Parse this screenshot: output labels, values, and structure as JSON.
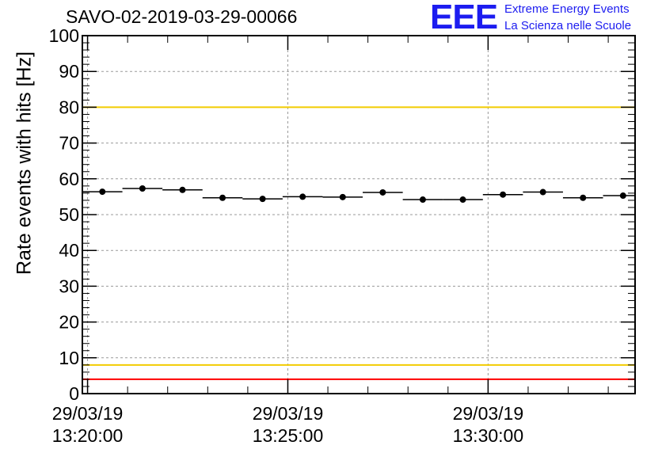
{
  "title": "SAVO-02-2019-03-29-00066",
  "logo": {
    "mark": "EEE",
    "line1": "Extreme Energy Events",
    "line2": "La Scienza nelle Scuole",
    "color": "#1c1cf0"
  },
  "chart_data": {
    "type": "scatter",
    "title": "SAVO-02-2019-03-29-00066",
    "ylabel": "Rate events with hits [Hz]",
    "xlabel": "",
    "ylim": [
      0,
      100
    ],
    "yticks": [
      0,
      10,
      20,
      30,
      40,
      50,
      60,
      70,
      80,
      90,
      100
    ],
    "xlim_minutes": [
      13.2,
      27.0
    ],
    "xticks": [
      {
        "minute": 13.33,
        "date": "29/03/19",
        "time": "13:20:00"
      },
      {
        "minute": 18.33,
        "date": "29/03/19",
        "time": "13:25:00"
      },
      {
        "minute": 23.33,
        "date": "29/03/19",
        "time": "13:30:00"
      }
    ],
    "grid": true,
    "points": [
      {
        "x": 13.7,
        "y": 56.4,
        "x0": 13.2,
        "x1": 14.2,
        "err": 0.6
      },
      {
        "x": 14.7,
        "y": 57.3,
        "x0": 14.2,
        "x1": 15.2,
        "err": 0.6
      },
      {
        "x": 15.7,
        "y": 56.9,
        "x0": 15.2,
        "x1": 16.2,
        "err": 0.6
      },
      {
        "x": 16.7,
        "y": 54.7,
        "x0": 16.2,
        "x1": 17.2,
        "err": 0.6
      },
      {
        "x": 17.7,
        "y": 54.4,
        "x0": 17.2,
        "x1": 18.2,
        "err": 0.6
      },
      {
        "x": 18.7,
        "y": 55.0,
        "x0": 18.2,
        "x1": 19.2,
        "err": 0.6
      },
      {
        "x": 19.7,
        "y": 54.9,
        "x0": 19.2,
        "x1": 20.2,
        "err": 0.6
      },
      {
        "x": 20.7,
        "y": 56.2,
        "x0": 20.2,
        "x1": 21.2,
        "err": 0.6
      },
      {
        "x": 21.7,
        "y": 54.2,
        "x0": 21.2,
        "x1": 22.2,
        "err": 0.6
      },
      {
        "x": 22.7,
        "y": 54.2,
        "x0": 22.2,
        "x1": 23.2,
        "err": 0.6
      },
      {
        "x": 23.7,
        "y": 55.6,
        "x0": 23.2,
        "x1": 24.2,
        "err": 0.6
      },
      {
        "x": 24.7,
        "y": 56.3,
        "x0": 24.2,
        "x1": 25.2,
        "err": 0.6
      },
      {
        "x": 25.7,
        "y": 54.7,
        "x0": 25.2,
        "x1": 26.2,
        "err": 0.6
      },
      {
        "x": 26.7,
        "y": 55.3,
        "x0": 26.2,
        "x1": 27.0,
        "err": 0.6
      }
    ],
    "reference_lines": [
      {
        "name": "red-upper-limit",
        "y": 100,
        "color": "#ff0000"
      },
      {
        "name": "yellow-upper-limit",
        "y": 80,
        "color": "#f2cc00"
      },
      {
        "name": "yellow-lower-limit",
        "y": 8,
        "color": "#f2cc00"
      },
      {
        "name": "red-lower-limit",
        "y": 4,
        "color": "#ff0000"
      }
    ]
  }
}
